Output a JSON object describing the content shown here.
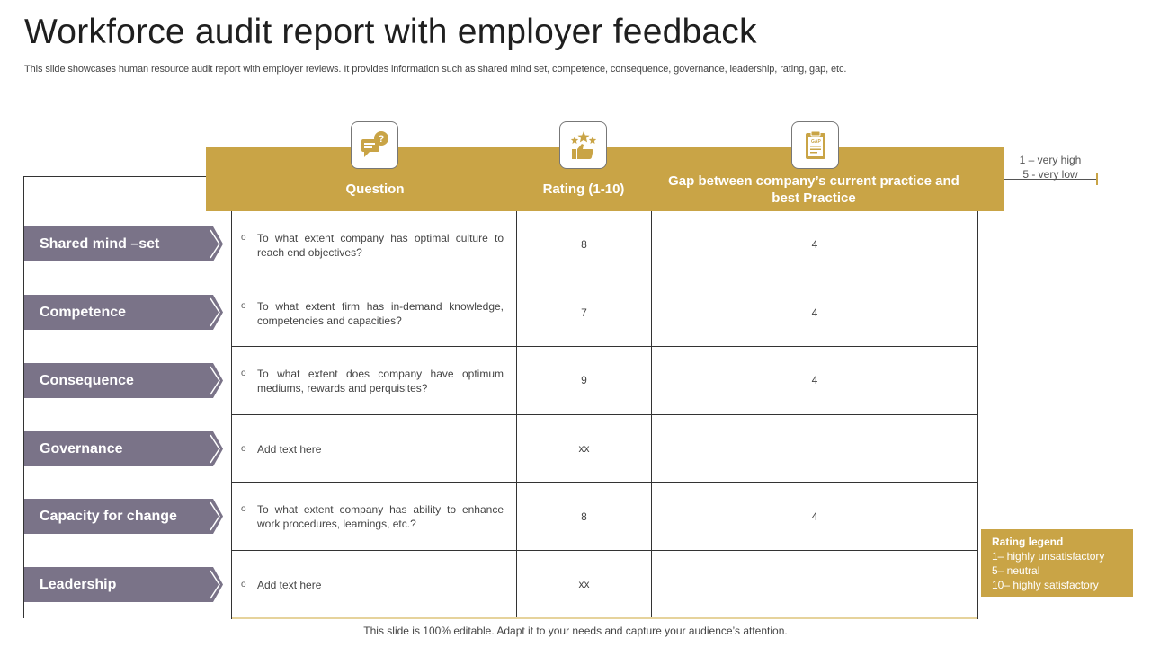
{
  "title": "Workforce audit report with employer feedback",
  "subtitle": "This slide showcases human resource audit report with employer reviews. It provides information such as shared mind set, competence, consequence, governance, leadership, rating, gap, etc.",
  "header": {
    "question": "Question",
    "rating": "Rating (1-10)",
    "gap": "Gap between company’s current practice and best Practice"
  },
  "icons": [
    "question-chat-icon",
    "rating-stars-thumb-icon",
    "gap-clipboard-icon"
  ],
  "scale": {
    "high": "1 – very high",
    "low": "5 - very low"
  },
  "rows": [
    {
      "label": "Shared mind –set",
      "bullet": "o",
      "question": "To what extent company has optimal culture to reach end objectives?",
      "rating": "8",
      "gap": "4"
    },
    {
      "label": "Competence",
      "bullet": "o",
      "question": "To what extent firm has in-demand knowledge, competencies and capacities?",
      "rating": "7",
      "gap": "4"
    },
    {
      "label": "Consequence",
      "bullet": "o",
      "question": "To what extent does company have optimum mediums, rewards and perquisites?",
      "rating": "9",
      "gap": "4"
    },
    {
      "label": "Governance",
      "bullet": "o",
      "question": "Add text here",
      "rating": "xx",
      "gap": ""
    },
    {
      "label": "Capacity for change",
      "bullet": "o",
      "question": "To what extent company has ability to enhance work procedures, learnings, etc.?",
      "rating": "8",
      "gap": "4"
    },
    {
      "label": "Leadership",
      "bullet": "o",
      "question": "Add text here",
      "rating": "xx",
      "gap": ""
    }
  ],
  "legend": {
    "title": "Rating legend",
    "items": [
      "1– highly unsatisfactory",
      "5– neutral",
      "10– highly satisfactory"
    ]
  },
  "footer": "This slide is 100% editable. Adapt it to your needs and capture your audience’s attention.",
  "colors": {
    "gold": "#c9a446",
    "label_purple": "#7a7388",
    "text": "#444444"
  }
}
